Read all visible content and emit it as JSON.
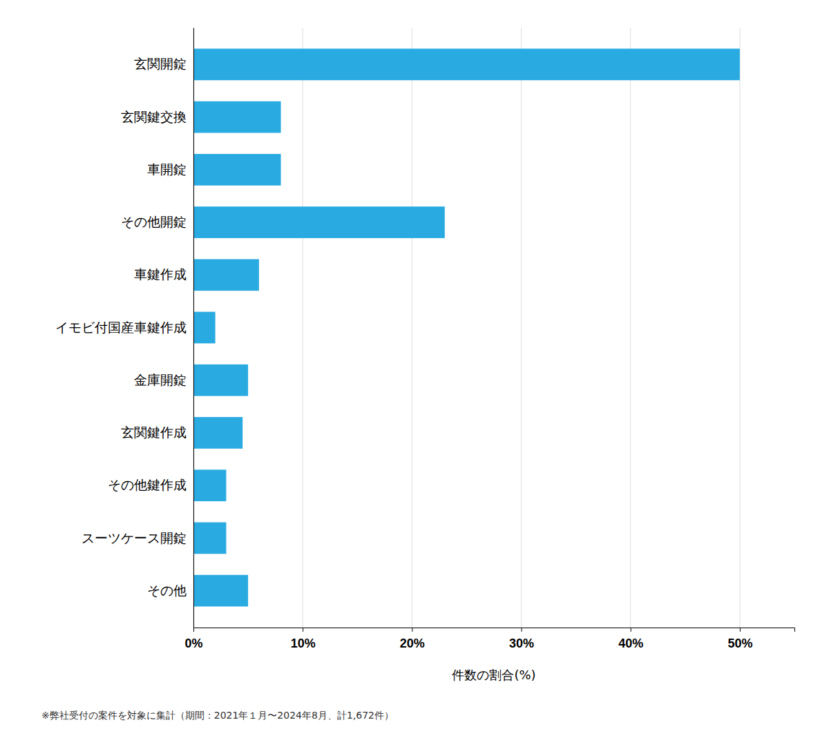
{
  "chart_data": {
    "type": "bar",
    "orientation": "horizontal",
    "categories": [
      "玄関開錠",
      "玄関鍵交換",
      "車開錠",
      "その他開錠",
      "車鍵作成",
      "イモビ付国産車鍵作成",
      "金庫開錠",
      "玄関鍵作成",
      "その他鍵作成",
      "スーツケース開錠",
      "その他"
    ],
    "values": [
      50.0,
      8.0,
      8.0,
      23.0,
      6.0,
      2.0,
      5.0,
      4.5,
      3.0,
      3.0,
      5.0
    ],
    "color": "#29ABE2",
    "xlabel": "件数の割合(%)",
    "xlim": [
      0,
      55
    ],
    "xticks": [
      {
        "value": 0,
        "label": "0%"
      },
      {
        "value": 10,
        "label": "10%"
      },
      {
        "value": 20,
        "label": "20%"
      },
      {
        "value": 30,
        "label": "30%"
      },
      {
        "value": 40,
        "label": "40%"
      },
      {
        "value": 50,
        "label": "50%"
      }
    ],
    "grid": true,
    "footnote": "※弊社受付の案件を対象に集計（期間：2021年１月〜2024年8月、計1,672件）"
  }
}
